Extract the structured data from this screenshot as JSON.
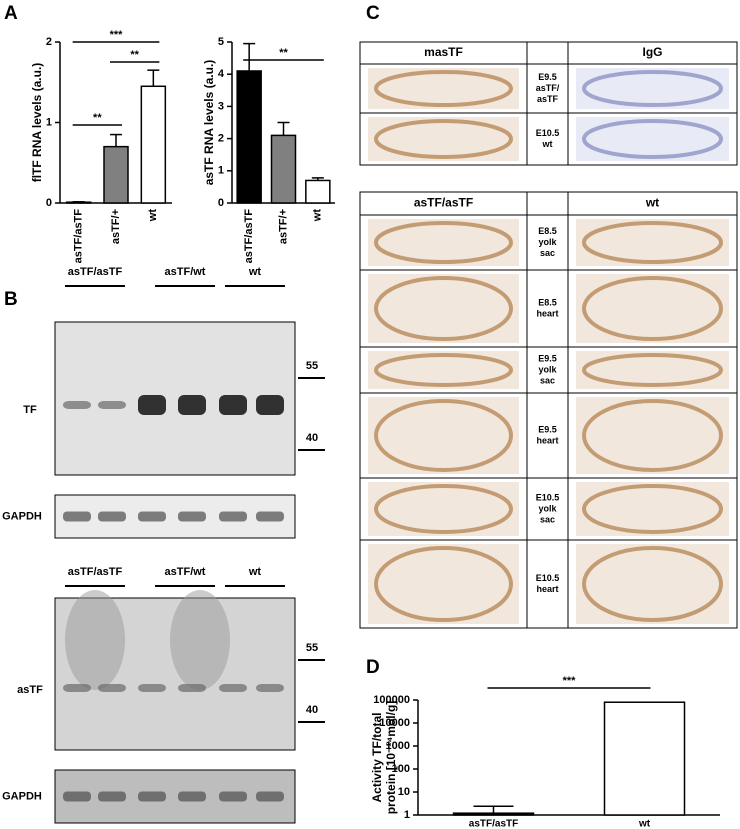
{
  "panel_labels": [
    "A",
    "B",
    "C",
    "D"
  ],
  "chart_data": [
    {
      "type": "bar",
      "ylabel": "flTF RNA levels (a.u.)",
      "categories": [
        "asTF/asTF",
        "asTF/+",
        "wt"
      ],
      "values": [
        0.01,
        0.7,
        1.45
      ],
      "errors": [
        0.005,
        0.15,
        0.2
      ],
      "colors": [
        "#000000",
        "#808080",
        "#ffffff"
      ],
      "ylim": [
        0,
        2
      ],
      "yticks": [
        0,
        1,
        2
      ],
      "significance": [
        {
          "label": "***",
          "between": [
            "asTF/asTF",
            "wt"
          ]
        },
        {
          "label": "**",
          "between": [
            "asTF/asTF",
            "asTF/+"
          ]
        },
        {
          "label": "**",
          "between": [
            "asTF/+",
            "wt"
          ]
        }
      ]
    },
    {
      "type": "bar",
      "ylabel": "asTF RNA levels (a.u.)",
      "categories": [
        "asTF/asTF",
        "asTF/+",
        "wt"
      ],
      "values": [
        4.1,
        2.1,
        0.7
      ],
      "errors": [
        0.85,
        0.4,
        0.08
      ],
      "colors": [
        "#000000",
        "#808080",
        "#ffffff"
      ],
      "ylim": [
        0,
        5
      ],
      "yticks": [
        0,
        1,
        2,
        3,
        4,
        5
      ],
      "significance": [
        {
          "label": "**",
          "between": [
            "asTF/asTF",
            "wt"
          ]
        }
      ]
    },
    {
      "type": "bar",
      "ylabel": [
        "Activity TF/total",
        "protein [10⁻¹⁴mol/g]"
      ],
      "log_scale": true,
      "categories": [
        "asTF/asTF",
        "wt"
      ],
      "values": [
        1.2,
        80000
      ],
      "errors": [
        1.2,
        0
      ],
      "colors": [
        "#000000",
        "#ffffff"
      ],
      "ylim": [
        1,
        100000
      ],
      "yticks": [
        1,
        10,
        100,
        1000,
        10000,
        100000
      ],
      "significance": [
        {
          "label": "***",
          "between": [
            "asTF/asTF",
            "wt"
          ]
        }
      ]
    }
  ],
  "blots": [
    {
      "lane_groups": [
        "asTF/asTF",
        "asTF/wt",
        "wt"
      ],
      "target": "TF",
      "markers": [
        55,
        40
      ],
      "loading_control": "GAPDH"
    },
    {
      "lane_groups": [
        "asTF/asTF",
        "asTF/wt",
        "wt"
      ],
      "target": "asTF",
      "markers": [
        55,
        40
      ],
      "loading_control": "GAPDH"
    }
  ],
  "tables": [
    {
      "headers": [
        "masTF",
        "IgG"
      ],
      "rows": [
        [
          "E9.5",
          "asTF/",
          "asTF"
        ],
        [
          "E10.5",
          "wt"
        ]
      ]
    },
    {
      "headers": [
        "asTF/asTF",
        "wt"
      ],
      "rows": [
        [
          "E8.5",
          "yolk",
          "sac"
        ],
        [
          "E8.5",
          "heart"
        ],
        [
          "E9.5",
          "yolk",
          "sac"
        ],
        [
          "E9.5",
          "heart"
        ],
        [
          "E10.5",
          "yolk",
          "sac"
        ],
        [
          "E10.5",
          "heart"
        ]
      ]
    }
  ]
}
